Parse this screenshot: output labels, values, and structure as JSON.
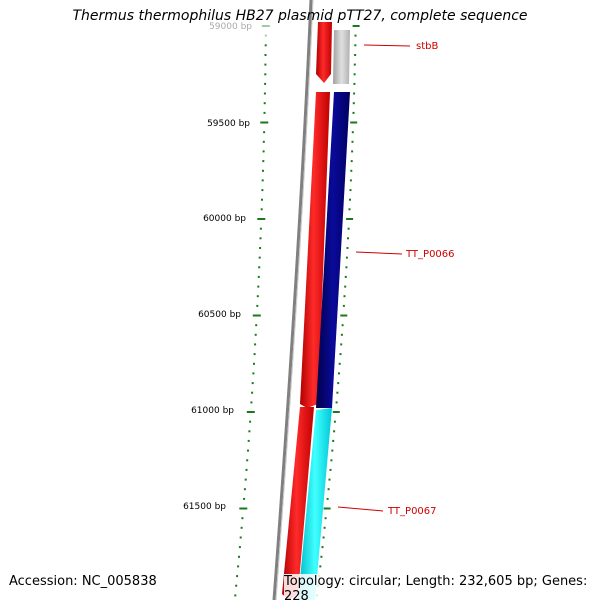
{
  "title": "Thermus thermophilus HB27 plasmid pTT27, complete sequence",
  "footer": {
    "accession": "Accession: NC_005838",
    "summary": "Topology: circular; Length: 232,605 bp; Genes: 228"
  },
  "ruler": {
    "labels": [
      "59000 bp",
      "59500 bp",
      "60000 bp",
      "60500 bp",
      "61000 bp",
      "61500 bp"
    ]
  },
  "genes": [
    {
      "name": "stbB",
      "color": "#c8c8c8"
    },
    {
      "name": "TT_P0066",
      "color": "#000080"
    },
    {
      "name": "TT_P0067",
      "color": "#00e5ee"
    }
  ],
  "colors": {
    "forward_strand": "#ff0000",
    "backbone": "#808080",
    "tick": "#1a7a1a",
    "gene_label": "#d00000"
  }
}
